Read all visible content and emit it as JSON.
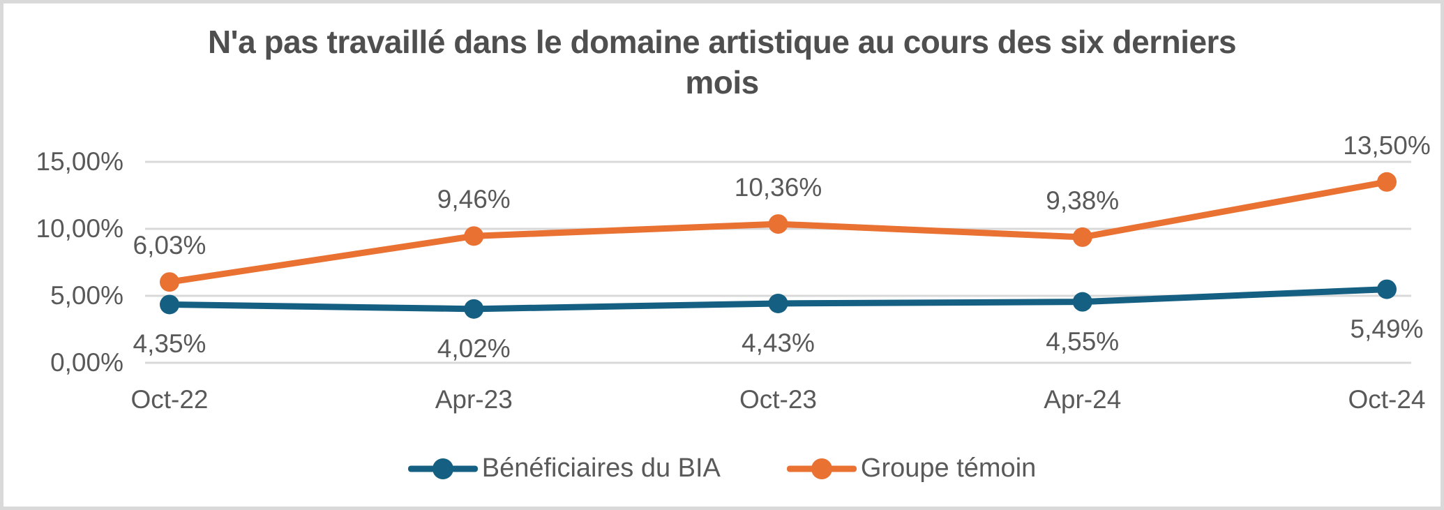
{
  "frame": {
    "border_color": "#d9d9d9",
    "background": "#ffffff"
  },
  "chart_data": {
    "type": "line",
    "title": "N'a pas travaillé dans le domaine artistique au cours des six derniers mois",
    "categories": [
      "Oct-22",
      "Apr-23",
      "Oct-23",
      "Apr-24",
      "Oct-24"
    ],
    "series": [
      {
        "name": "Bénéficiaires du BIA",
        "color": "#156082",
        "values": [
          4.35,
          4.02,
          4.43,
          4.55,
          5.49
        ],
        "labels": [
          "4,35%",
          "4,02%",
          "4,43%",
          "4,55%",
          "5,49%"
        ],
        "label_position": "below"
      },
      {
        "name": "Groupe témoin",
        "color": "#e97132",
        "values": [
          6.03,
          9.46,
          10.36,
          9.38,
          13.5
        ],
        "labels": [
          "6,03%",
          "9,46%",
          "10,36%",
          "9,38%",
          "13,50%"
        ],
        "label_position": "above"
      }
    ],
    "y_axis": {
      "min": 0,
      "max": 15,
      "tick_values": [
        0,
        5,
        10,
        15
      ],
      "tick_labels": [
        "0,00%",
        "5,00%",
        "10,00%",
        "15,00%"
      ]
    },
    "grid": true,
    "legend_position": "bottom",
    "styles": {
      "gridline_color": "#d9d9d9",
      "text_color": "#595959",
      "title_color": "#4f4f4f"
    }
  }
}
